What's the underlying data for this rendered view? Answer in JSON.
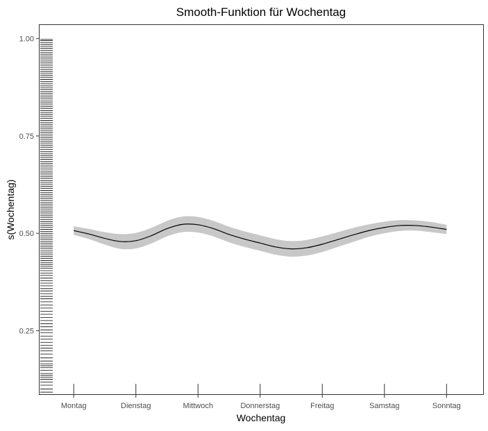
{
  "chart_data": {
    "type": "line",
    "title": "Smooth-Funktion für Wochentag",
    "xlabel": "Wochentag",
    "ylabel": "s(Wochentag)",
    "x_categories": [
      "Montag",
      "Dienstag",
      "Mittwoch",
      "Donnerstag",
      "Freitag",
      "Samstag",
      "Sonntag"
    ],
    "xlim": [
      0.45,
      7.6
    ],
    "ylim": [
      0.085,
      1.035
    ],
    "y_ticks": [
      0.25,
      0.5,
      0.75,
      1.0
    ],
    "y_tick_labels": [
      "0.25",
      "0.50",
      "0.75",
      "1.00"
    ],
    "grid": false,
    "series": [
      {
        "x": [
          1.0,
          1.25,
          1.5,
          1.75,
          2.0,
          2.25,
          2.5,
          2.75,
          3.0,
          3.25,
          3.5,
          3.75,
          4.0,
          4.25,
          4.5,
          4.75,
          5.0,
          5.25,
          5.5,
          5.75,
          6.0,
          6.25,
          6.5,
          6.75,
          7.0
        ],
        "y": [
          0.507,
          0.498,
          0.487,
          0.479,
          0.481,
          0.494,
          0.512,
          0.523,
          0.522,
          0.512,
          0.497,
          0.485,
          0.475,
          0.465,
          0.46,
          0.463,
          0.472,
          0.484,
          0.496,
          0.507,
          0.515,
          0.52,
          0.52,
          0.516,
          0.51
        ],
        "ci_halfwidth": [
          0.011,
          0.013,
          0.016,
          0.019,
          0.02,
          0.02,
          0.02,
          0.02,
          0.02,
          0.02,
          0.02,
          0.02,
          0.02,
          0.02,
          0.02,
          0.02,
          0.02,
          0.019,
          0.018,
          0.016,
          0.015,
          0.014,
          0.013,
          0.013,
          0.012
        ]
      }
    ],
    "rug_y": [
      0.092,
      0.1,
      0.11,
      0.118,
      0.125,
      0.13,
      0.135,
      0.14,
      0.148,
      0.155,
      0.16,
      0.165,
      0.172,
      0.18,
      0.19,
      0.198,
      0.205,
      0.212,
      0.22,
      0.228,
      0.236,
      0.245,
      0.252,
      0.26,
      0.268,
      0.276,
      0.284,
      0.292,
      0.3,
      0.308,
      0.316,
      0.324,
      0.332,
      0.338,
      0.345,
      0.352,
      0.358,
      0.365,
      0.372,
      0.378,
      0.385,
      0.392,
      0.398,
      0.404,
      0.41,
      0.415,
      0.42,
      0.425,
      0.43,
      0.435,
      0.44,
      0.445,
      0.45,
      0.455,
      0.46,
      0.465,
      0.47,
      0.475,
      0.48,
      0.485,
      0.49,
      0.495,
      0.5,
      0.505,
      0.51,
      0.515,
      0.52,
      0.525,
      0.53,
      0.535,
      0.54,
      0.545,
      0.55,
      0.555,
      0.56,
      0.565,
      0.57,
      0.575,
      0.58,
      0.585,
      0.59,
      0.595,
      0.6,
      0.605,
      0.61,
      0.615,
      0.62,
      0.625,
      0.63,
      0.635,
      0.64,
      0.645,
      0.65,
      0.655,
      0.66,
      0.665,
      0.67,
      0.675,
      0.68,
      0.685,
      0.69,
      0.695,
      0.7,
      0.705,
      0.71,
      0.715,
      0.72,
      0.725,
      0.73,
      0.735,
      0.74,
      0.745,
      0.75,
      0.755,
      0.76,
      0.765,
      0.77,
      0.775,
      0.78,
      0.785,
      0.79,
      0.795,
      0.8,
      0.805,
      0.81,
      0.815,
      0.82,
      0.825,
      0.83,
      0.835,
      0.84,
      0.845,
      0.85,
      0.855,
      0.86,
      0.865,
      0.87,
      0.875,
      0.88,
      0.885,
      0.89,
      0.895,
      0.9,
      0.905,
      0.91,
      0.915,
      0.92,
      0.925,
      0.93,
      0.935,
      0.94,
      0.945,
      0.95,
      0.955,
      0.96,
      0.965,
      0.97,
      0.975,
      0.98,
      0.985,
      0.99,
      0.995,
      0.998
    ],
    "colors": {
      "line": "#000000",
      "ci_band": "#c8c8c8",
      "rug": "#000000",
      "panel_border": "#333333",
      "tick_label": "#4d4d4d"
    }
  }
}
